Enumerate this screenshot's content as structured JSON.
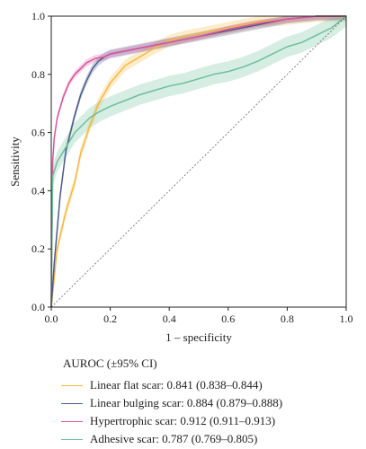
{
  "chart_data": {
    "type": "line",
    "xlabel": "1 – specificity",
    "ylabel": "Sensitivity",
    "xlim": [
      0,
      1
    ],
    "ylim": [
      0,
      1
    ],
    "xticks": [
      "0.0",
      "0.2",
      "0.4",
      "0.6",
      "0.8",
      "1.0"
    ],
    "yticks": [
      "0.0",
      "0.2",
      "0.4",
      "0.6",
      "0.8",
      "1.0"
    ],
    "grid": false,
    "legend_position": "bottom",
    "legend_title": "AUROC (±95% CI)",
    "chance_line": true,
    "series": [
      {
        "name": "Linear flat scar: 0.841 (0.838–0.844)",
        "color": "#f5b942",
        "band": 0.02,
        "x": [
          0,
          0.02,
          0.05,
          0.08,
          0.1,
          0.13,
          0.16,
          0.2,
          0.25,
          0.3,
          0.35,
          0.4,
          0.45,
          0.5,
          0.6,
          0.7,
          0.8,
          0.9,
          1.0
        ],
        "y": [
          0,
          0.2,
          0.33,
          0.43,
          0.53,
          0.62,
          0.7,
          0.77,
          0.83,
          0.86,
          0.89,
          0.915,
          0.93,
          0.94,
          0.96,
          0.98,
          0.99,
          1.0,
          1.0
        ]
      },
      {
        "name": "Linear bulging scar: 0.884 (0.879–0.888)",
        "color": "#4a5b8c",
        "band": 0.015,
        "x": [
          0,
          0.01,
          0.03,
          0.05,
          0.08,
          0.1,
          0.12,
          0.14,
          0.16,
          0.18,
          0.2,
          0.25,
          0.3,
          0.4,
          0.5,
          0.6,
          0.7,
          0.8,
          0.9,
          1.0
        ],
        "y": [
          0,
          0.15,
          0.38,
          0.54,
          0.66,
          0.73,
          0.78,
          0.82,
          0.845,
          0.86,
          0.87,
          0.88,
          0.89,
          0.91,
          0.93,
          0.95,
          0.97,
          0.99,
          1.0,
          1.0
        ]
      },
      {
        "name": "Hypertrophic scar: 0.912 (0.911–0.913)",
        "color": "#d9569e",
        "band": 0.012,
        "x": [
          0,
          0.005,
          0.01,
          0.02,
          0.04,
          0.06,
          0.08,
          0.1,
          0.12,
          0.15,
          0.18,
          0.2,
          0.25,
          0.3,
          0.4,
          0.5,
          0.6,
          0.7,
          0.8,
          0.9,
          1.0
        ],
        "y": [
          0,
          0.5,
          0.58,
          0.65,
          0.72,
          0.77,
          0.8,
          0.82,
          0.84,
          0.855,
          0.86,
          0.87,
          0.88,
          0.89,
          0.91,
          0.93,
          0.955,
          0.975,
          0.99,
          1.0,
          1.0
        ]
      },
      {
        "name": "Adhesive scar: 0.787 (0.769–0.805)",
        "color": "#6bbf9a",
        "band": 0.035,
        "x": [
          0,
          0.005,
          0.02,
          0.05,
          0.08,
          0.1,
          0.13,
          0.16,
          0.2,
          0.25,
          0.3,
          0.35,
          0.4,
          0.45,
          0.5,
          0.55,
          0.6,
          0.65,
          0.7,
          0.75,
          0.8,
          0.85,
          0.9,
          0.95,
          1.0
        ],
        "y": [
          0,
          0.45,
          0.5,
          0.55,
          0.6,
          0.62,
          0.65,
          0.67,
          0.69,
          0.71,
          0.73,
          0.745,
          0.76,
          0.77,
          0.785,
          0.8,
          0.81,
          0.825,
          0.845,
          0.87,
          0.895,
          0.91,
          0.935,
          0.96,
          1.0
        ]
      }
    ]
  }
}
